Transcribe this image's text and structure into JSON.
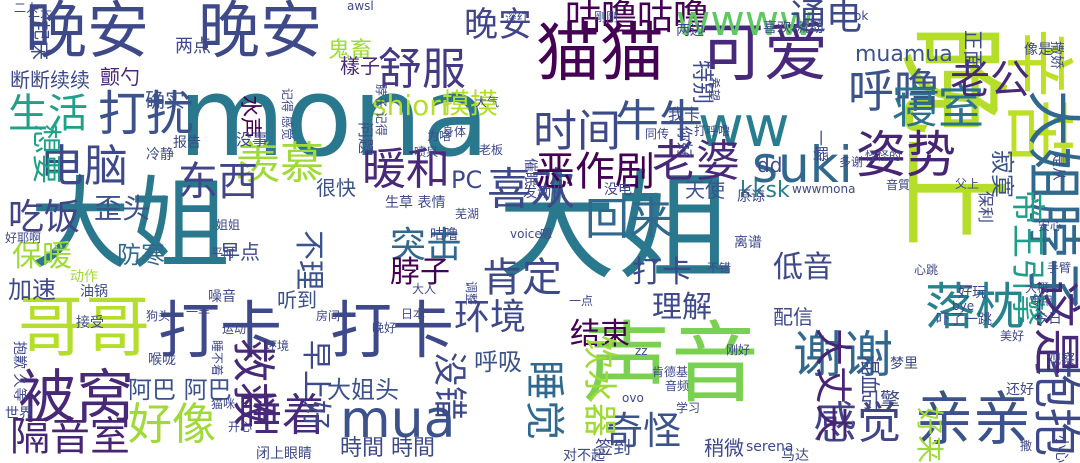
{
  "words": [
    {
      "text": "mona",
      "color": "#2a788e"
    },
    {
      "text": "大姐",
      "color": "#2a788e"
    },
    {
      "text": "晚上",
      "color": "#b5de2b"
    },
    {
      "text": "大姐",
      "color": "#2a788e"
    },
    {
      "text": "晚安",
      "color": "#3e4989"
    },
    {
      "text": "晚安",
      "color": "#3e4989"
    },
    {
      "text": "猫猫",
      "color": "#440154"
    },
    {
      "text": "可爱",
      "color": "#482878"
    },
    {
      "text": "声音",
      "color": "#7ad151"
    },
    {
      "text": "打卡",
      "color": "#3e4989"
    },
    {
      "text": "打卡",
      "color": "#3e4989"
    },
    {
      "text": "辛苦",
      "color": "#bddf26"
    },
    {
      "text": "大姐脖子",
      "color": "#31688e"
    },
    {
      "text": "哥哥",
      "color": "#b5de2b"
    },
    {
      "text": "被窝",
      "color": "#482878"
    },
    {
      "text": "亲亲",
      "color": "#3b528b"
    },
    {
      "text": "mua",
      "color": "#3b528b"
    },
    {
      "text": "落枕",
      "color": "#26828e"
    },
    {
      "text": "谢谢",
      "color": "#31688e"
    },
    {
      "text": "电脑",
      "color": "#3e4989"
    },
    {
      "text": "ww",
      "color": "#287d8e"
    },
    {
      "text": "舒服",
      "color": "#443983"
    },
    {
      "text": "晚安",
      "color": "#414487"
    },
    {
      "text": "咕噜咕噜",
      "color": "#440154"
    },
    {
      "text": "wwww",
      "color": "#5ec962"
    },
    {
      "text": "呼噜",
      "color": "#3b528b"
    },
    {
      "text": "通电",
      "color": "#3e4989"
    },
    {
      "text": "寝室",
      "color": "#2c728e"
    },
    {
      "text": "老公",
      "color": "#482878"
    },
    {
      "text": "姿势",
      "color": "#482475"
    },
    {
      "text": "suki",
      "color": "#31688e"
    },
    {
      "text": "羡慕",
      "color": "#a0da39"
    },
    {
      "text": "暖和",
      "color": "#482878"
    },
    {
      "text": "喜欢",
      "color": "#3e4989"
    },
    {
      "text": "回来",
      "color": "#31688e"
    },
    {
      "text": "东西",
      "color": "#414487"
    },
    {
      "text": "生活",
      "color": "#1fa187"
    },
    {
      "text": "打扰",
      "color": "#3b528b"
    },
    {
      "text": "时间",
      "color": "#3e4989"
    },
    {
      "text": "牛牛",
      "color": "#3b528b"
    },
    {
      "text": "老婆",
      "color": "#482878"
    },
    {
      "text": "恶作剧",
      "color": "#440154"
    },
    {
      "text": "吃饭",
      "color": "#414487"
    },
    {
      "text": "好像",
      "color": "#a0da39"
    },
    {
      "text": "睡着",
      "color": "#482878"
    },
    {
      "text": "隔音室",
      "color": "#482475"
    },
    {
      "text": "肯定",
      "color": "#3e4989"
    },
    {
      "text": "突击",
      "color": "#31688e"
    },
    {
      "text": "救救",
      "color": "#482878"
    },
    {
      "text": "感觉",
      "color": "#414487"
    },
    {
      "text": "奇怪",
      "color": "#3b528b"
    },
    {
      "text": "抱抱",
      "color": "#3e4989"
    },
    {
      "text": "这是",
      "color": "#482878"
    },
    {
      "text": "环境",
      "color": "#3e4989"
    },
    {
      "text": "理解",
      "color": "#3e4989"
    },
    {
      "text": "结束",
      "color": "#440154"
    },
    {
      "text": "打卡",
      "color": "#3e4989"
    },
    {
      "text": "低音",
      "color": "#3e4989"
    },
    {
      "text": "帝王引擎",
      "color": "#1f9e89"
    },
    {
      "text": "大丈夫",
      "color": "#482475"
    },
    {
      "text": "睡觉",
      "color": "#31688e"
    },
    {
      "text": "饮水器",
      "color": "#a0da39"
    },
    {
      "text": "没错",
      "color": "#3e4989"
    },
    {
      "text": "脖子",
      "color": "#440154"
    },
    {
      "text": "呼吸",
      "color": "#3b528b"
    },
    {
      "text": "保暖",
      "color": "#a0da39"
    },
    {
      "text": "歪头",
      "color": "#3b528b"
    },
    {
      "text": "PC",
      "color": "#3e4989"
    },
    {
      "text": "shiori",
      "color": "#b5de2b"
    },
    {
      "text": "摸摸",
      "color": "#b5de2b"
    },
    {
      "text": "想要",
      "color": "#1fa187"
    },
    {
      "text": "加速",
      "color": "#3e4989"
    },
    {
      "text": "防寒",
      "color": "#31688e"
    },
    {
      "text": "不理",
      "color": "#3b528b"
    },
    {
      "text": "阿巴 阿巴",
      "color": "#3b528b"
    },
    {
      "text": "早上好",
      "color": "#3e4989"
    },
    {
      "text": "大姐头",
      "color": "#3b528b"
    },
    {
      "text": "時間 時間",
      "color": "#3e4989"
    },
    {
      "text": "鬼畜",
      "color": "#a0da39"
    },
    {
      "text": "muamua",
      "color": "#3b528b"
    },
    {
      "text": "很快",
      "color": "#3b528b"
    },
    {
      "text": "樣子",
      "color": "#482878"
    },
    {
      "text": "断断续续",
      "color": "#3e4989"
    },
    {
      "text": "颤勺",
      "color": "#482878"
    },
    {
      "text": "确实",
      "color": "#3b528b"
    },
    {
      "text": "两点",
      "color": "#3e4989"
    },
    {
      "text": "特别",
      "color": "#3e4989"
    },
    {
      "text": "水声",
      "color": "#440154"
    },
    {
      "text": "天使",
      "color": "#3b528b"
    },
    {
      "text": "kksk",
      "color": "#287d8e"
    },
    {
      "text": "dd",
      "color": "#3e4989"
    },
    {
      "text": "听到",
      "color": "#3b528b"
    },
    {
      "text": "早点",
      "color": "#3e4989"
    },
    {
      "text": "起床",
      "color": "#3e4989"
    },
    {
      "text": "引擎",
      "color": "#3e4989"
    },
    {
      "text": "混血",
      "color": "#3e4989"
    },
    {
      "text": "配信",
      "color": "#3e4989"
    },
    {
      "text": "稍微",
      "color": "#3e4989"
    },
    {
      "text": "签到",
      "color": "#3e4989"
    },
    {
      "text": "好来",
      "color": "#a0da39"
    },
    {
      "text": "寂寞",
      "color": "#3b528b"
    },
    {
      "text": "正面",
      "color": "#3e4989"
    },
    {
      "text": "油锅",
      "color": "#3e4989"
    },
    {
      "text": "动作",
      "color": "#a0da39"
    },
    {
      "text": "噪音",
      "color": "#3e4989"
    },
    {
      "text": "生草 表情",
      "color": "#3e4989"
    },
    {
      "text": "发动机",
      "color": "#3e4989"
    },
    {
      "text": "没电",
      "color": "#3e4989"
    },
    {
      "text": "原谅",
      "color": "#3e4989"
    },
    {
      "text": "离谱",
      "color": "#3e4989"
    },
    {
      "text": "一瞬",
      "color": "#3e4989"
    },
    {
      "text": "保利",
      "color": "#3e4989"
    },
    {
      "text": "是从",
      "color": "#3e4989"
    },
    {
      "text": "像是",
      "color": "#3e4989"
    },
    {
      "text": "撒娇",
      "color": "#3e4989"
    },
    {
      "text": "你好",
      "color": "#3e4989"
    },
    {
      "text": "我卡",
      "color": "#3e4989"
    },
    {
      "text": "问题",
      "color": "#3e4989"
    },
    {
      "text": "没事",
      "color": "#3e4989"
    },
    {
      "text": "报告",
      "color": "#3e4989"
    },
    {
      "text": "冷静",
      "color": "#3e4989"
    },
    {
      "text": "催眠",
      "color": "#3e4989"
    },
    {
      "text": "两边",
      "color": "#3e4989"
    },
    {
      "text": "喜欢 流动",
      "color": "#3e4989"
    },
    {
      "text": "好玩",
      "color": "#3e4989"
    },
    {
      "text": "世界",
      "color": "#3e4989"
    },
    {
      "text": "接受",
      "color": "#3e4989"
    },
    {
      "text": "喉咙",
      "color": "#3e4989"
    },
    {
      "text": "闭上眼睛",
      "color": "#3e4989"
    },
    {
      "text": "对不起",
      "color": "#3e4989"
    },
    {
      "text": "马达",
      "color": "#3e4989"
    },
    {
      "text": "serena",
      "color": "#3e4989"
    },
    {
      "text": "肯德基",
      "color": "#3e4989"
    },
    {
      "text": "小心",
      "color": "#3e4989"
    },
    {
      "text": "观察",
      "color": "#3e4989"
    },
    {
      "text": "梦里",
      "color": "#3e4989"
    },
    {
      "text": "还好",
      "color": "#3e4989"
    },
    {
      "text": "今日",
      "color": "#3e4989"
    },
    {
      "text": "吓了一跳",
      "color": "#3e4989"
    },
    {
      "text": "voice",
      "color": "#3e4989"
    },
    {
      "text": "ok",
      "color": "#3e4989"
    },
    {
      "text": "awsl",
      "color": "#3e4989"
    },
    {
      "text": "剛剛",
      "color": "#3e4989"
    },
    {
      "text": "深红",
      "color": "#3e4989"
    },
    {
      "text": "wwwmona",
      "color": "#3e4989"
    },
    {
      "text": "音質",
      "color": "#3e4989"
    },
    {
      "text": "父上",
      "color": "#3e4989"
    },
    {
      "text": "一点",
      "color": "#3e4989"
    },
    {
      "text": "大人",
      "color": "#3e4989"
    },
    {
      "text": "房间",
      "color": "#3e4989"
    },
    {
      "text": "晚好",
      "color": "#3e4989"
    },
    {
      "text": "日本",
      "color": "#3e4989"
    },
    {
      "text": "平时",
      "color": "#3e4989"
    },
    {
      "text": "调整",
      "color": "#3e4989"
    },
    {
      "text": "同传",
      "color": "#3e4989"
    },
    {
      "text": "打呼噜",
      "color": "#3e4989"
    },
    {
      "text": "身体",
      "color": "#3e4989"
    },
    {
      "text": "为啥",
      "color": "#3e4989"
    },
    {
      "text": "喷泉",
      "color": "#3e4989"
    },
    {
      "text": "希望",
      "color": "#3e4989"
    },
    {
      "text": "芜湖",
      "color": "#3e4989"
    },
    {
      "text": "咕噜",
      "color": "#3e4989"
    },
    {
      "text": "猫咪",
      "color": "#3e4989"
    },
    {
      "text": "开心",
      "color": "#3e4989"
    },
    {
      "text": "好耶啊",
      "color": "#3e4989"
    },
    {
      "text": "手臂",
      "color": "#3e4989"
    },
    {
      "text": "大概",
      "color": "#3e4989"
    },
    {
      "text": "专用",
      "color": "#3e4989"
    },
    {
      "text": "狗头",
      "color": "#3e4989"
    },
    {
      "text": "运动",
      "color": "#3e4989"
    },
    {
      "text": "bye",
      "color": "#3e4989"
    },
    {
      "text": "安心",
      "color": "#3e4989"
    },
    {
      "text": "多谢",
      "color": "#3e4989"
    },
    {
      "text": "怪怪的",
      "color": "#3e4989"
    },
    {
      "text": "一半",
      "color": "#3e4989"
    },
    {
      "text": "环境",
      "color": "#3e4989"
    },
    {
      "text": "姐姐",
      "color": "#3e4989"
    },
    {
      "text": "二人",
      "color": "#3e4989"
    },
    {
      "text": "大气",
      "color": "#3e4989"
    },
    {
      "text": "老板",
      "color": "#3e4989"
    },
    {
      "text": "嗯",
      "color": "#3e4989"
    },
    {
      "text": "心跳",
      "color": "#3e4989"
    },
    {
      "text": "抱歉 久等",
      "color": "#3e4989"
    },
    {
      "text": "记得 感觉",
      "color": "#3e4989"
    },
    {
      "text": "脖子 记得",
      "color": "#3e4989"
    },
    {
      "text": "睡不着",
      "color": "#3e4989"
    },
    {
      "text": "不错",
      "color": "#3e4989"
    },
    {
      "text": "二大",
      "color": "#3e4989"
    },
    {
      "text": "ovo",
      "color": "#3e4989"
    },
    {
      "text": "刚好",
      "color": "#3e4989"
    },
    {
      "text": "zz",
      "color": "#3e4989"
    },
    {
      "text": "美好",
      "color": "#3e4989"
    },
    {
      "text": "撒",
      "color": "#3e4989"
    },
    {
      "text": "音频",
      "color": "#3e4989"
    },
    {
      "text": "学习",
      "color": "#3e4989"
    }
  ]
}
